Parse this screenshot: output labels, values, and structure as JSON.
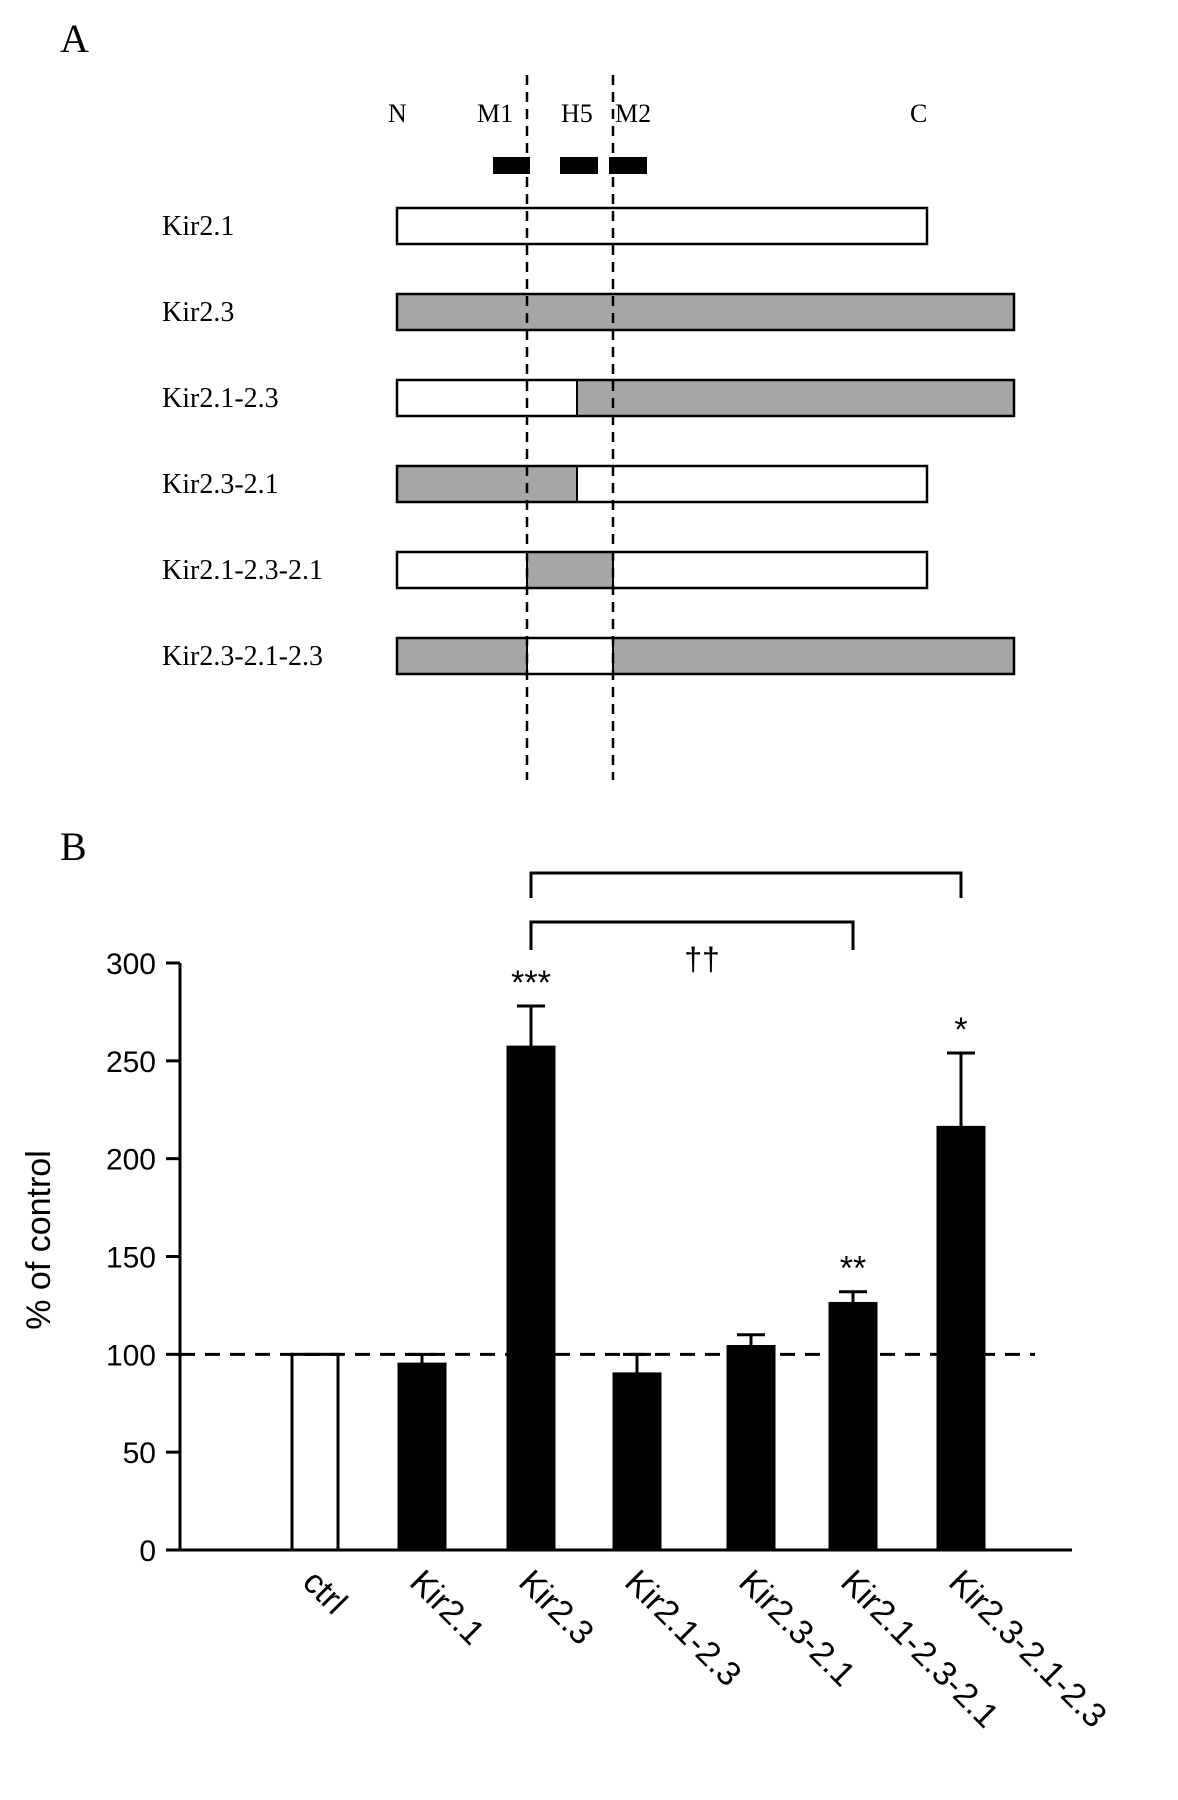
{
  "panel_a": {
    "panel_label": "A",
    "domain_labels": {
      "n": "N",
      "m1": "M1",
      "h5": "H5",
      "m2": "M2",
      "c": "C"
    },
    "constructs": [
      {
        "name": "Kir2.1",
        "segments": [
          [
            "white",
            0,
            100
          ]
        ],
        "length": "short"
      },
      {
        "name": "Kir2.3",
        "segments": [
          [
            "gray",
            0,
            100
          ]
        ],
        "length": "long"
      },
      {
        "name": "Kir2.1-2.3",
        "segments": [
          [
            "white",
            0,
            1
          ],
          [
            "gray",
            1,
            100
          ]
        ],
        "length": "long"
      },
      {
        "name": "Kir2.3-2.1",
        "segments": [
          [
            "gray",
            0,
            1
          ],
          [
            "white",
            1,
            100
          ]
        ],
        "length": "short"
      },
      {
        "name": "Kir2.1-2.3-2.1",
        "segments": [
          [
            "white",
            0,
            1
          ],
          [
            "gray",
            1,
            2
          ],
          [
            "white",
            2,
            100
          ]
        ],
        "length": "short"
      },
      {
        "name": "Kir2.3-2.1-2.3",
        "segments": [
          [
            "gray",
            0,
            1
          ],
          [
            "white",
            1,
            2
          ],
          [
            "gray",
            2,
            100
          ]
        ],
        "length": "long"
      }
    ],
    "colors": {
      "white": "#ffffff",
      "gray": "#a6a6a6",
      "black": "#000000"
    }
  },
  "chart_data": {
    "type": "bar",
    "panel_label": "B",
    "ylabel": "% of control",
    "ylim": [
      0,
      300
    ],
    "yticks": [
      0,
      50,
      100,
      150,
      200,
      250,
      300
    ],
    "categories": [
      "ctrl",
      "Kir2.1",
      "Kir2.3",
      "Kir2.1-2.3",
      "Kir2.3-2.1",
      "Kir2.1-2.3-2.1",
      "Kir2.3-2.1-2.3"
    ],
    "values": [
      100,
      95,
      257,
      90,
      104,
      126,
      216
    ],
    "errors": [
      0,
      5,
      21,
      10,
      6,
      6,
      38
    ],
    "bar_colors": [
      "#ffffff",
      "#000000",
      "#000000",
      "#000000",
      "#000000",
      "#000000",
      "#000000"
    ],
    "significance": [
      "",
      "",
      "***",
      "",
      "",
      "**",
      "*"
    ],
    "reference_line": 100,
    "brackets": [
      {
        "from": "Kir2.3",
        "to": "Kir2.3-2.1-2.3",
        "label": ""
      },
      {
        "from": "Kir2.3",
        "to": "Kir2.1-2.3-2.1",
        "label": "††"
      }
    ],
    "grid": false
  }
}
